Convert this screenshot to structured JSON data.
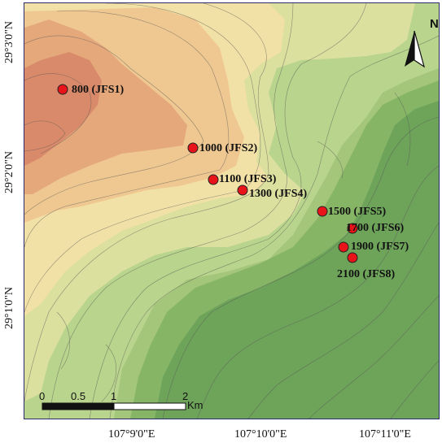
{
  "map": {
    "sites": [
      {
        "label": "800 (JFS1)"
      },
      {
        "label": "1000 (JFS2)"
      },
      {
        "label": "1100 (JFS3)"
      },
      {
        "label": "1300 (JFS4)"
      },
      {
        "label": "1500 (JFS5)"
      },
      {
        "label": "1700 (JFS6)"
      },
      {
        "label": "1900 (JFS7)"
      },
      {
        "label": "2100 (JFS8)"
      }
    ],
    "longitude_ticks": [
      "107°9'0\"E",
      "107°10'0\"E",
      "107°11'0\"E"
    ],
    "latitude_ticks": [
      "29°3'0\"N",
      "29°2'0\"N",
      "29°1'0\"N"
    ],
    "scale_bar": {
      "ticks": [
        "0",
        "0.5",
        "1",
        "2"
      ],
      "unit": "Km"
    },
    "north_arrow": {
      "letter": "N",
      "icon": "north-arrow-icon"
    },
    "colors": {
      "marker": "#e8141a",
      "low_elevation": "#d98a6a",
      "mid_elevation": "#f2dc9a",
      "high_elevation": "#6ea35a",
      "frame": "#2b2b6b"
    }
  }
}
